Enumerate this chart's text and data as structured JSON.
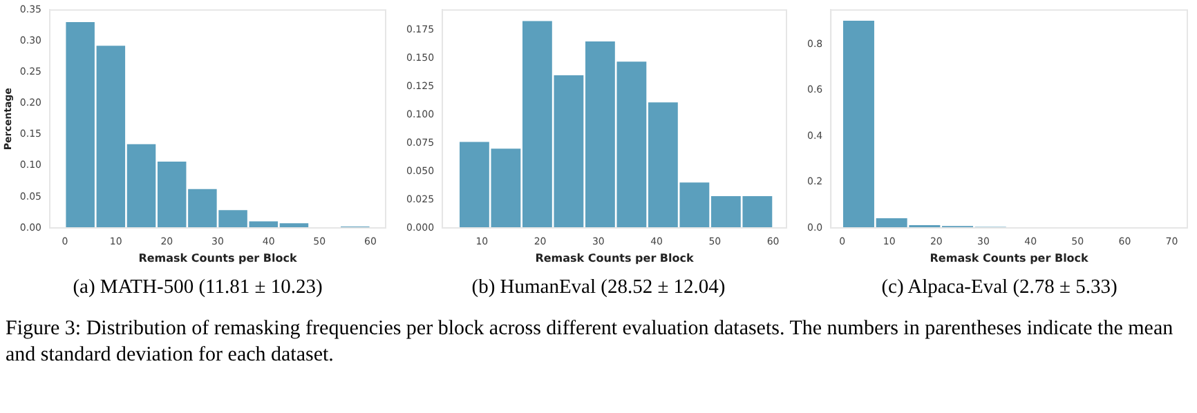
{
  "chart_data": [
    {
      "type": "histogram",
      "title": "(a) MATH-500 (11.81 ± 10.23)",
      "xlabel": "Remask Counts per Block",
      "ylabel": "Percentage",
      "color": "#5b9fbd",
      "bins": [
        0,
        6,
        12,
        18,
        24,
        30,
        36,
        42,
        48,
        54,
        60
      ],
      "values": [
        0.332,
        0.294,
        0.136,
        0.108,
        0.064,
        0.03,
        0.012,
        0.009,
        0,
        0.003
      ],
      "xlim": [
        -3,
        63
      ],
      "xticks": [
        0,
        10,
        20,
        30,
        40,
        50,
        60
      ],
      "ylim": [
        0,
        0.35
      ],
      "yticks": [
        {
          "value": 0,
          "label": "0.00"
        },
        {
          "value": 0.05,
          "label": "0.05"
        },
        {
          "value": 0.1,
          "label": "0.10"
        },
        {
          "value": 0.15,
          "label": "0.15"
        },
        {
          "value": 0.2,
          "label": "0.20"
        },
        {
          "value": 0.25,
          "label": "0.25"
        },
        {
          "value": 0.3,
          "label": "0.30"
        },
        {
          "value": 0.35,
          "label": "0.35"
        }
      ],
      "annotations": [
        "Figure 3: Distribution of remasking frequencies per block across different evaluation datasets. The numbers in parentheses indicate the mean and standard deviation for each dataset."
      ]
    },
    {
      "type": "histogram",
      "title": "(b) HumanEval (28.52 ± 12.04)",
      "xlabel": "Remask Counts per Block",
      "color": "#5b9fbd",
      "bins": [
        6,
        11.4,
        16.8,
        22.2,
        27.6,
        33,
        38.4,
        43.8,
        49.2,
        54.6,
        60
      ],
      "values": [
        0.077,
        0.071,
        0.184,
        0.136,
        0.166,
        0.148,
        0.112,
        0.041,
        0.029,
        0.029
      ],
      "xlim": [
        3.2,
        62.3
      ],
      "xticks": [
        10,
        20,
        30,
        40,
        50,
        60
      ],
      "ylim": [
        0,
        0.193
      ],
      "yticks": [
        {
          "value": 0,
          "label": "0.000"
        },
        {
          "value": 0.025,
          "label": "0.025"
        },
        {
          "value": 0.05,
          "label": "0.050"
        },
        {
          "value": 0.075,
          "label": "0.075"
        },
        {
          "value": 0.1,
          "label": "0.100"
        },
        {
          "value": 0.125,
          "label": "0.125"
        },
        {
          "value": 0.15,
          "label": "0.150"
        },
        {
          "value": 0.175,
          "label": "0.175"
        }
      ]
    },
    {
      "type": "histogram",
      "title": "(c) Alpaca-Eval (2.78 ± 5.33)",
      "xlabel": "Remask Counts per Block",
      "color": "#5b9fbd",
      "bins": [
        0,
        7,
        14,
        21,
        28,
        35,
        42,
        49,
        56,
        63,
        70
      ],
      "values": [
        0.907,
        0.046,
        0.016,
        0.012,
        0.005,
        0,
        0,
        0,
        0,
        0
      ],
      "xlim": [
        -2.4,
        73.3
      ],
      "xticks": [
        0,
        10,
        20,
        30,
        40,
        50,
        60,
        70
      ],
      "ylim": [
        0,
        0.95
      ],
      "yticks": [
        {
          "value": 0,
          "label": "0.0"
        },
        {
          "value": 0.2,
          "label": "0.2"
        },
        {
          "value": 0.4,
          "label": "0.4"
        },
        {
          "value": 0.6,
          "label": "0.6"
        },
        {
          "value": 0.8,
          "label": "0.8"
        }
      ]
    }
  ]
}
